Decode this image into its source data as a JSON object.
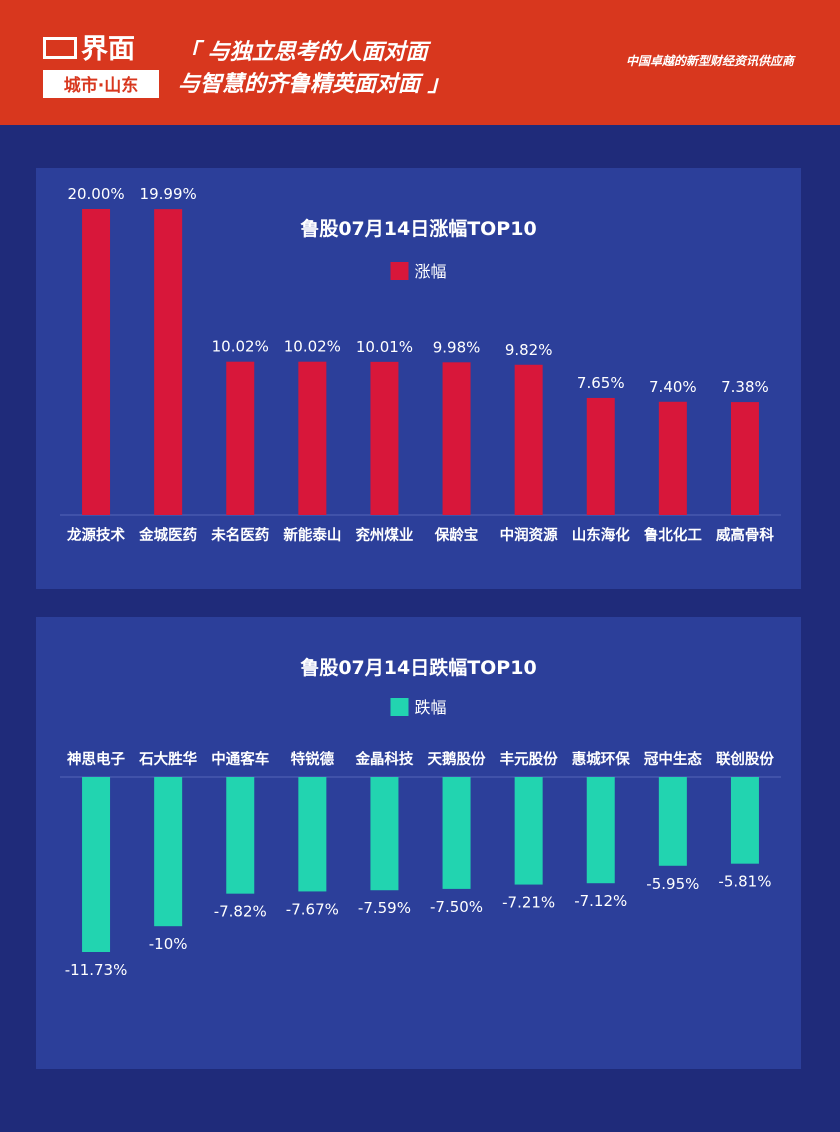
{
  "header": {
    "logo_top": "界面",
    "logo_bottom": "城市·山东",
    "slogan_line1": "「 与独立思考的人面对面",
    "slogan_line2": "与智慧的齐鲁精英面对面 」",
    "tagline": "中国卓越的新型财经资讯供应商",
    "bg_color": "#d8371e"
  },
  "chart_data": [
    {
      "type": "bar",
      "title": "鲁股07月14日涨幅TOP10",
      "categories": [
        "龙源技术",
        "金城医药",
        "未名医药",
        "新能泰山",
        "兖州煤业",
        "保龄宝",
        "中润资源",
        "山东海化",
        "鲁北化工",
        "威高骨科"
      ],
      "series": [
        {
          "name": "涨幅",
          "values": [
            20.0,
            19.99,
            10.02,
            10.02,
            10.01,
            9.98,
            9.82,
            7.65,
            7.4,
            7.38
          ],
          "color": "#d8173a"
        }
      ],
      "labels": [
        "20.00%",
        "19.99%",
        "10.02%",
        "10.02%",
        "10.01%",
        "9.98%",
        "9.82%",
        "7.65%",
        "7.40%",
        "7.38%"
      ],
      "ylim": [
        0,
        20
      ],
      "grid": false,
      "legend": "top"
    },
    {
      "type": "bar",
      "title": "鲁股07月14日跌幅TOP10",
      "categories": [
        "神思电子",
        "石大胜华",
        "中通客车",
        "特锐德",
        "金晶科技",
        "天鹅股份",
        "丰元股份",
        "惠城环保",
        "冠中生态",
        "联创股份"
      ],
      "series": [
        {
          "name": "跌幅",
          "values": [
            -11.73,
            -10,
            -7.82,
            -7.67,
            -7.59,
            -7.5,
            -7.21,
            -7.12,
            -5.95,
            -5.81
          ],
          "color": "#22d4b0"
        }
      ],
      "labels": [
        "-11.73%",
        "-10%",
        "-7.82%",
        "-7.67%",
        "-7.59%",
        "-7.50%",
        "-7.21%",
        "-7.12%",
        "-5.95%",
        "-5.81%"
      ],
      "ylim": [
        -11.73,
        0
      ],
      "grid": false,
      "legend": "top"
    }
  ]
}
